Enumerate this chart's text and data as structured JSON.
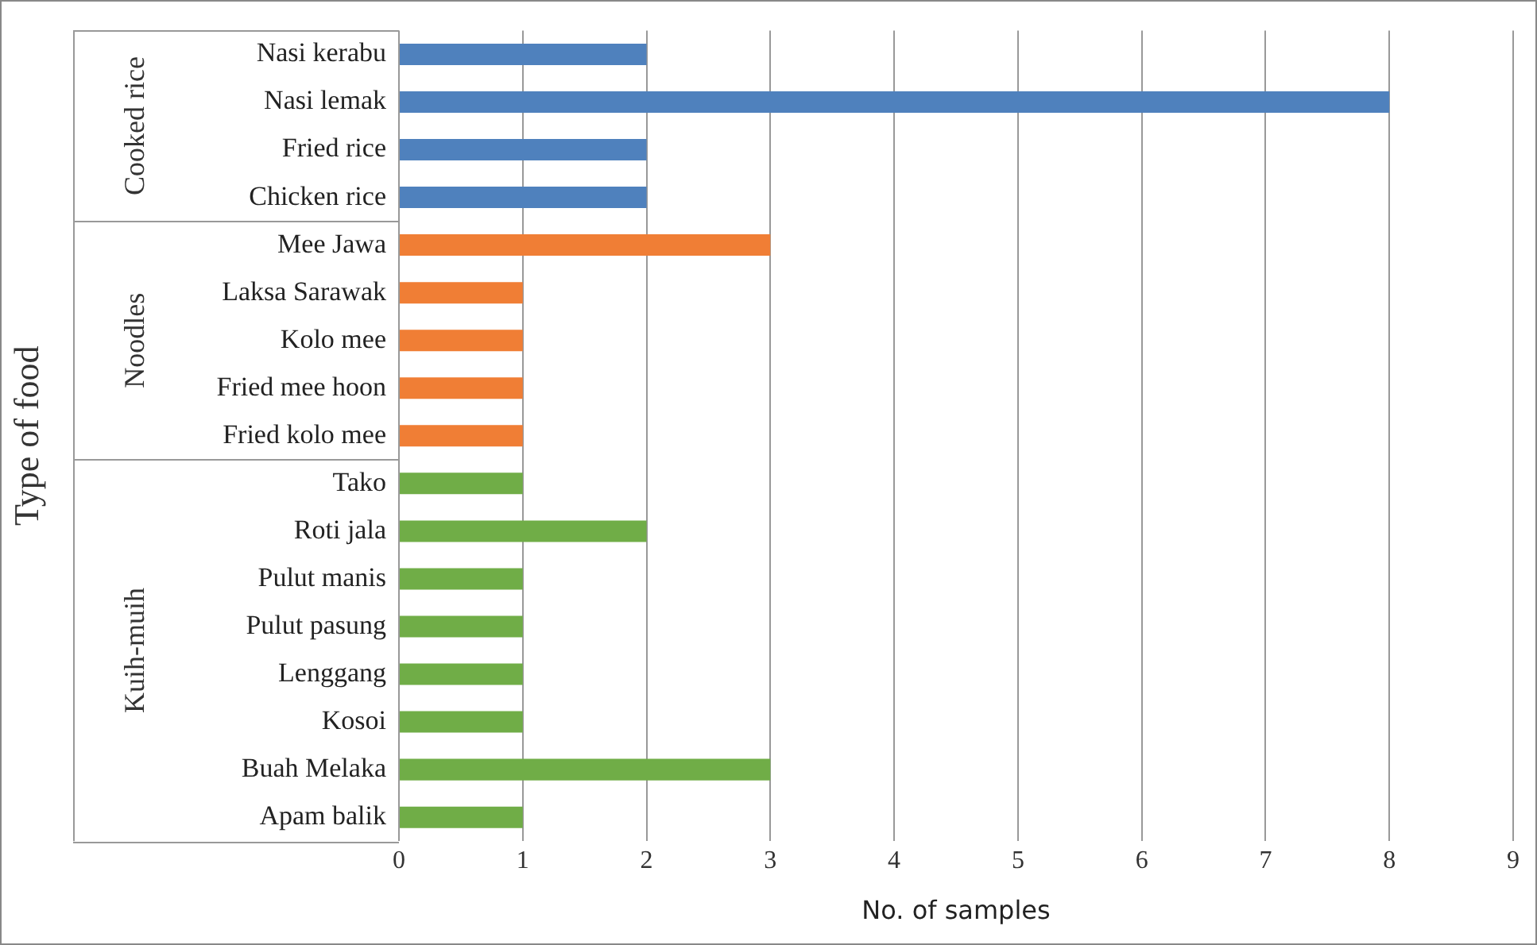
{
  "chart_data": {
    "type": "bar",
    "orientation": "horizontal",
    "xlabel": "No. of samples",
    "ylabel": "Type of food",
    "categories": [
      "Nasi kerabu",
      "Nasi lemak",
      "Fried rice",
      "Chicken rice",
      "Mee Jawa",
      "Laksa Sarawak",
      "Kolo mee",
      "Fried mee hoon",
      "Fried kolo mee",
      "Tako",
      "Roti jala",
      "Pulut manis",
      "Pulut pasung",
      "Lenggang",
      "Kosoi",
      "Buah Melaka",
      "Apam balik"
    ],
    "series": [
      {
        "color": "#4f81bd",
        "values": [
          2,
          8,
          2,
          2,
          null,
          null,
          null,
          null,
          null,
          null,
          null,
          null,
          null,
          null,
          null,
          null,
          null
        ]
      },
      {
        "color": "#f07e35",
        "values": [
          null,
          null,
          null,
          null,
          3,
          1,
          1,
          1,
          1,
          null,
          null,
          null,
          null,
          null,
          null,
          null,
          null
        ]
      },
      {
        "color": "#70ad47",
        "values": [
          null,
          null,
          null,
          null,
          null,
          null,
          null,
          null,
          null,
          1,
          2,
          1,
          1,
          1,
          1,
          3,
          1
        ]
      }
    ],
    "annotations": [
      "Cooked rice",
      "Noodles",
      "Kuih-muih"
    ],
    "xlim": [
      0,
      9
    ],
    "xticks": [
      0,
      1,
      2,
      3,
      4,
      5,
      6,
      7,
      8,
      9
    ],
    "grid": "x",
    "legend": false
  }
}
